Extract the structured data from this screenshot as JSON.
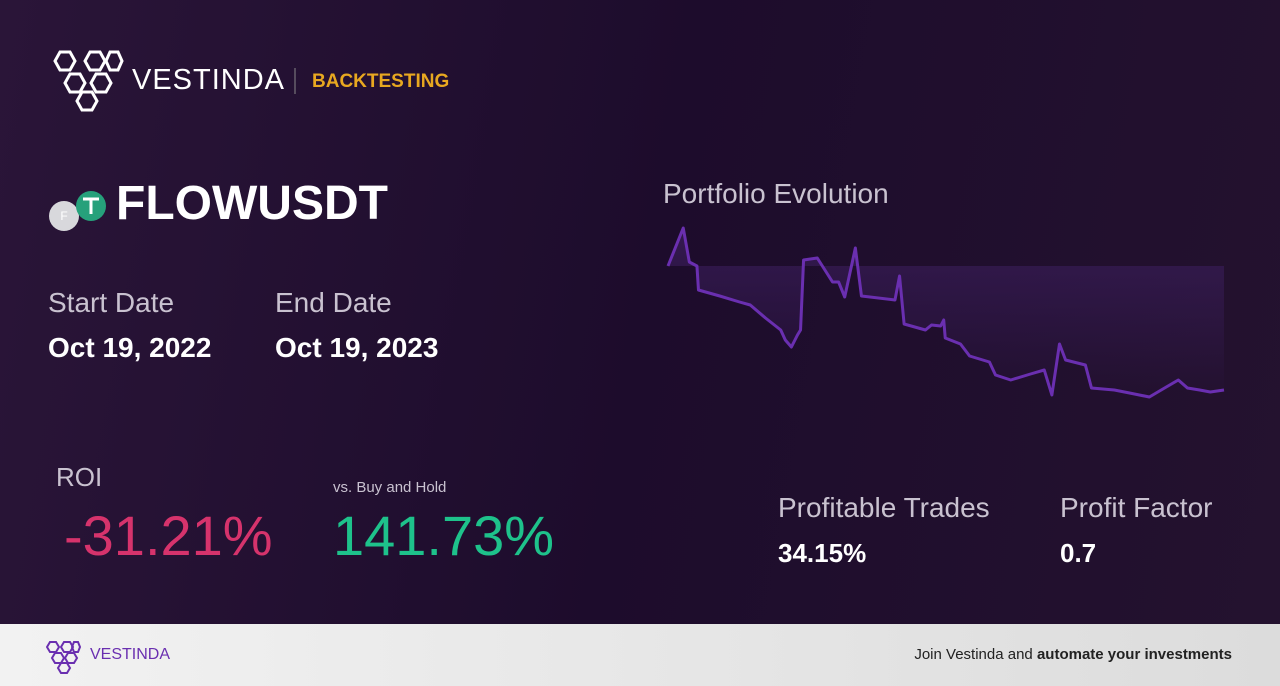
{
  "brand": "VESTINDA",
  "section": "BACKTESTING",
  "asset": {
    "icon_letter": "F",
    "symbol": "FLOWUSDT"
  },
  "dates": {
    "start_label": "Start Date",
    "start": "Oct 19, 2022",
    "end_label": "End Date",
    "end": "Oct 19, 2023"
  },
  "roi": {
    "label": "ROI",
    "value": "-31.21%",
    "compare_label": "vs. Buy and Hold",
    "compare_value": "141.73%"
  },
  "stats": [
    {
      "label": "Profitable Trades",
      "value": "34.15%"
    },
    {
      "label": "Profit Factor",
      "value": "0.7"
    }
  ],
  "footer": {
    "brand": "VESTINDA",
    "cta_text": "Join Vestinda and",
    "cta_bold": "automate your investments"
  },
  "chart_data": {
    "type": "line",
    "title": "Portfolio Evolution",
    "color": "#6a2fb0",
    "x": [
      0,
      10,
      14,
      19,
      20,
      34,
      47,
      54,
      64,
      74,
      77,
      81,
      85,
      87,
      89,
      98,
      108,
      112,
      116,
      123,
      127,
      149,
      152,
      155,
      169,
      173,
      179,
      181,
      182,
      192,
      198,
      211,
      215,
      225,
      238,
      247,
      252,
      257,
      261,
      274,
      278,
      293,
      303,
      316,
      326,
      335,
      341,
      349,
      356,
      365
    ],
    "values": [
      100,
      109.5,
      101,
      100,
      94,
      92.5,
      91,
      90.25,
      87,
      84,
      81.5,
      79.75,
      82.75,
      84,
      101.5,
      102,
      96,
      96,
      92.25,
      104.5,
      92.5,
      91.5,
      97.5,
      85.5,
      84,
      85.25,
      85,
      86.5,
      82,
      80.5,
      77.5,
      76,
      72.75,
      71.5,
      73,
      74,
      67.75,
      80.5,
      76.5,
      75.25,
      69.5,
      69,
      68.25,
      67.25,
      69.5,
      71.5,
      69.5,
      69,
      68.5,
      69
    ],
    "xlim": [
      0,
      365
    ],
    "ylim": [
      66,
      110
    ]
  }
}
